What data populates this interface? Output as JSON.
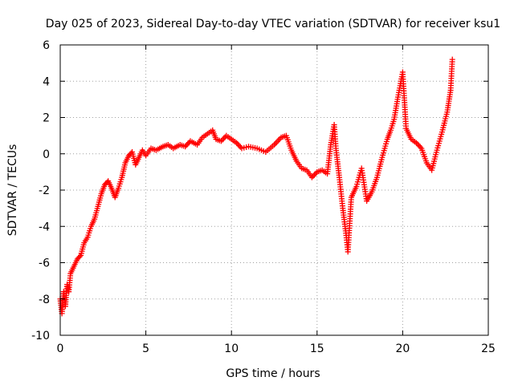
{
  "chart_data": {
    "type": "scatter",
    "title": "Day 025 of 2023, Sidereal Day-to-day VTEC variation (SDTVAR) for receiver ksu1",
    "xlabel": "GPS time / hours",
    "ylabel": "SDTVAR / TECUs",
    "xlim": [
      0,
      25
    ],
    "ylim": [
      -10,
      6
    ],
    "xticks": [
      0,
      5,
      10,
      15,
      20,
      25
    ],
    "yticks": [
      -10,
      -8,
      -6,
      -4,
      -2,
      0,
      2,
      4,
      6
    ],
    "grid": true,
    "marker": "+",
    "color": "#ff0000",
    "series": [
      {
        "name": "ksu1",
        "points": [
          [
            0.0,
            -8.0
          ],
          [
            0.1,
            -8.8
          ],
          [
            0.2,
            -7.6
          ],
          [
            0.3,
            -8.4
          ],
          [
            0.4,
            -7.2
          ],
          [
            0.5,
            -7.6
          ],
          [
            0.6,
            -6.6
          ],
          [
            0.8,
            -6.2
          ],
          [
            1.0,
            -5.8
          ],
          [
            1.2,
            -5.6
          ],
          [
            1.4,
            -4.9
          ],
          [
            1.6,
            -4.6
          ],
          [
            1.8,
            -4.0
          ],
          [
            2.0,
            -3.6
          ],
          [
            2.2,
            -2.9
          ],
          [
            2.4,
            -2.2
          ],
          [
            2.6,
            -1.7
          ],
          [
            2.8,
            -1.5
          ],
          [
            3.0,
            -1.9
          ],
          [
            3.2,
            -2.4
          ],
          [
            3.4,
            -1.9
          ],
          [
            3.6,
            -1.3
          ],
          [
            3.8,
            -0.5
          ],
          [
            4.0,
            -0.1
          ],
          [
            4.2,
            0.1
          ],
          [
            4.4,
            -0.6
          ],
          [
            4.6,
            -0.2
          ],
          [
            4.8,
            0.2
          ],
          [
            5.0,
            -0.1
          ],
          [
            5.3,
            0.3
          ],
          [
            5.6,
            0.2
          ],
          [
            6.0,
            0.4
          ],
          [
            6.3,
            0.5
          ],
          [
            6.6,
            0.3
          ],
          [
            7.0,
            0.5
          ],
          [
            7.3,
            0.4
          ],
          [
            7.6,
            0.7
          ],
          [
            8.0,
            0.5
          ],
          [
            8.3,
            0.9
          ],
          [
            8.6,
            1.1
          ],
          [
            8.9,
            1.3
          ],
          [
            9.1,
            0.8
          ],
          [
            9.4,
            0.7
          ],
          [
            9.7,
            1.0
          ],
          [
            10.0,
            0.8
          ],
          [
            10.3,
            0.6
          ],
          [
            10.6,
            0.3
          ],
          [
            11.0,
            0.4
          ],
          [
            11.5,
            0.3
          ],
          [
            12.0,
            0.1
          ],
          [
            12.5,
            0.5
          ],
          [
            12.9,
            0.9
          ],
          [
            13.2,
            1.0
          ],
          [
            13.5,
            0.2
          ],
          [
            13.8,
            -0.4
          ],
          [
            14.1,
            -0.8
          ],
          [
            14.4,
            -0.9
          ],
          [
            14.7,
            -1.3
          ],
          [
            15.0,
            -1.0
          ],
          [
            15.3,
            -0.9
          ],
          [
            15.6,
            -1.1
          ],
          [
            15.8,
            0.5
          ],
          [
            16.0,
            1.6
          ],
          [
            16.1,
            0.3
          ],
          [
            16.3,
            -1.3
          ],
          [
            16.5,
            -3.0
          ],
          [
            16.7,
            -4.5
          ],
          [
            16.8,
            -5.4
          ],
          [
            17.0,
            -2.4
          ],
          [
            17.3,
            -1.8
          ],
          [
            17.6,
            -0.8
          ],
          [
            17.9,
            -2.6
          ],
          [
            18.2,
            -2.1
          ],
          [
            18.5,
            -1.3
          ],
          [
            18.8,
            -0.2
          ],
          [
            19.1,
            0.8
          ],
          [
            19.3,
            1.3
          ],
          [
            19.5,
            1.9
          ],
          [
            19.7,
            3.0
          ],
          [
            19.9,
            4.0
          ],
          [
            20.0,
            4.5
          ],
          [
            20.2,
            1.4
          ],
          [
            20.5,
            0.8
          ],
          [
            20.8,
            0.6
          ],
          [
            21.1,
            0.3
          ],
          [
            21.4,
            -0.5
          ],
          [
            21.7,
            -0.9
          ],
          [
            22.0,
            0.2
          ],
          [
            22.3,
            1.2
          ],
          [
            22.6,
            2.3
          ],
          [
            22.8,
            3.5
          ],
          [
            22.9,
            5.2
          ]
        ]
      }
    ]
  }
}
